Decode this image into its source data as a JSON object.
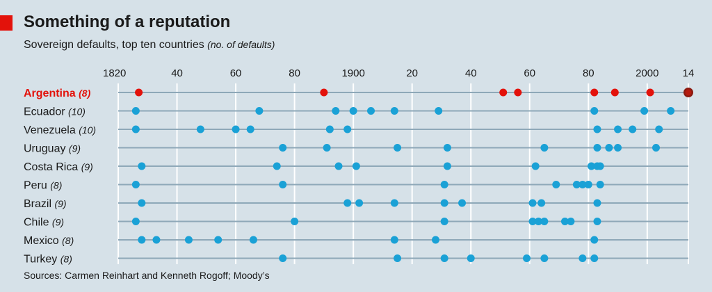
{
  "header": {
    "title": "Something of a reputation",
    "subtitle": "Sovereign defaults, top ten countries",
    "subtitle_unit": "(no. of defaults)"
  },
  "footer": {
    "source": "Sources: Carmen Reinhart and Kenneth Rogoff; Moody’s"
  },
  "colors": {
    "background": "#d6e1e8",
    "accent": "#e3120b",
    "dot": "#1aa1d6",
    "highlight_dot": "#e3120b",
    "row_line": "#8ea8b8",
    "grid": "#ffffff"
  },
  "chart_data": {
    "type": "scatter",
    "title": "Something of a reputation",
    "subtitle": "Sovereign defaults, top ten countries (no. of defaults)",
    "xlabel": "",
    "ylabel": "",
    "xlim": [
      1820,
      2014
    ],
    "grid": true,
    "x_ticks": [
      {
        "value": 1820,
        "label": "1820"
      },
      {
        "value": 1840,
        "label": "40"
      },
      {
        "value": 1860,
        "label": "60"
      },
      {
        "value": 1880,
        "label": "80"
      },
      {
        "value": 1900,
        "label": "1900"
      },
      {
        "value": 1920,
        "label": "20"
      },
      {
        "value": 1940,
        "label": "40"
      },
      {
        "value": 1960,
        "label": "60"
      },
      {
        "value": 1980,
        "label": "80"
      },
      {
        "value": 2000,
        "label": "2000"
      },
      {
        "value": 2014,
        "label": "14"
      }
    ],
    "series": [
      {
        "name": "Argentina",
        "count_label": "(8)",
        "highlight": true,
        "years": [
          1827,
          1890,
          1951,
          1956,
          1982,
          1989,
          2001,
          2014
        ]
      },
      {
        "name": "Ecuador",
        "count_label": "(10)",
        "highlight": false,
        "years": [
          1826,
          1868,
          1894,
          1900,
          1906,
          1914,
          1929,
          1982,
          1999,
          2008
        ]
      },
      {
        "name": "Venezuela",
        "count_label": "(10)",
        "highlight": false,
        "years": [
          1826,
          1848,
          1860,
          1865,
          1892,
          1898,
          1983,
          1990,
          1995,
          2004
        ]
      },
      {
        "name": "Uruguay",
        "count_label": "(9)",
        "highlight": false,
        "years": [
          1876,
          1891,
          1915,
          1932,
          1965,
          1983,
          1987,
          1990,
          2003
        ]
      },
      {
        "name": "Costa Rica",
        "count_label": "(9)",
        "highlight": false,
        "years": [
          1828,
          1874,
          1895,
          1901,
          1932,
          1962,
          1981,
          1983,
          1984
        ]
      },
      {
        "name": "Peru",
        "count_label": "(8)",
        "highlight": false,
        "years": [
          1826,
          1876,
          1931,
          1969,
          1976,
          1978,
          1980,
          1984
        ]
      },
      {
        "name": "Brazil",
        "count_label": "(9)",
        "highlight": false,
        "years": [
          1828,
          1898,
          1902,
          1914,
          1931,
          1937,
          1961,
          1964,
          1983
        ]
      },
      {
        "name": "Chile",
        "count_label": "(9)",
        "highlight": false,
        "years": [
          1826,
          1880,
          1931,
          1961,
          1963,
          1965,
          1972,
          1974,
          1983
        ]
      },
      {
        "name": "Mexico",
        "count_label": "(8)",
        "highlight": false,
        "years": [
          1828,
          1833,
          1844,
          1854,
          1866,
          1914,
          1928,
          1982
        ]
      },
      {
        "name": "Turkey",
        "count_label": "(8)",
        "highlight": false,
        "years": [
          1876,
          1915,
          1931,
          1940,
          1959,
          1965,
          1978,
          1982
        ]
      }
    ]
  }
}
